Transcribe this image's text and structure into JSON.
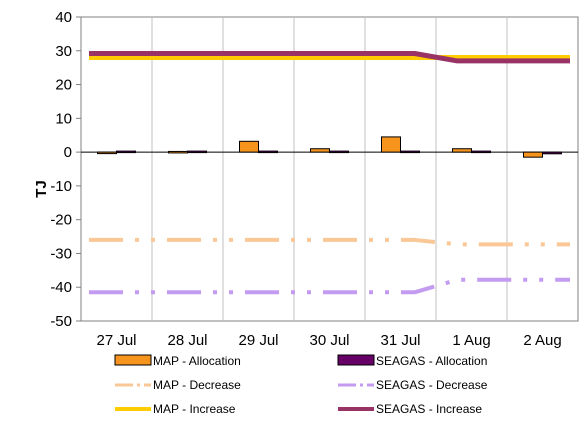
{
  "chart_data": {
    "type": "bar",
    "categories": [
      "27 Jul",
      "28 Jul",
      "29 Jul",
      "30 Jul",
      "31 Jul",
      "1 Aug",
      "2 Aug"
    ],
    "ylabel": "TJ",
    "xlabel": "",
    "title": "",
    "ylim": [
      -50,
      40
    ],
    "yticks": [
      40,
      30,
      20,
      10,
      0,
      -10,
      -20,
      -30,
      -40,
      -50
    ],
    "grid": "vertical category separators",
    "legend_position": "bottom",
    "series": [
      {
        "name": "MAP - Allocation",
        "kind": "bar",
        "color": "#f7941d",
        "values": [
          -0.2,
          0.2,
          3.2,
          1.0,
          4.5,
          1.0,
          -1.5
        ]
      },
      {
        "name": "SEAGAS - Allocation",
        "kind": "bar",
        "color": "#660066",
        "values": [
          0.3,
          0.3,
          0.3,
          0.3,
          0.3,
          0.3,
          -0.5
        ]
      },
      {
        "name": "MAP - Decrease",
        "kind": "line",
        "style": "dash-dot",
        "color": "#fac896",
        "values": [
          -26,
          -26,
          -26,
          -26,
          -26,
          -27.3,
          -27.3
        ]
      },
      {
        "name": "SEAGAS - Decrease",
        "kind": "line",
        "style": "dash-dot",
        "color": "#c39bf0",
        "values": [
          -41.5,
          -41.5,
          -41.5,
          -41.5,
          -41.5,
          -37.8,
          -37.8
        ]
      },
      {
        "name": "MAP - Increase",
        "kind": "line",
        "style": "solid",
        "color": "#ffcc00",
        "values": [
          28,
          28,
          28,
          28,
          28,
          28,
          28
        ]
      },
      {
        "name": "SEAGAS - Increase",
        "kind": "line",
        "style": "solid",
        "color": "#993366",
        "values": [
          29.2,
          29.2,
          29.2,
          29.2,
          29.2,
          27,
          27
        ]
      }
    ]
  }
}
